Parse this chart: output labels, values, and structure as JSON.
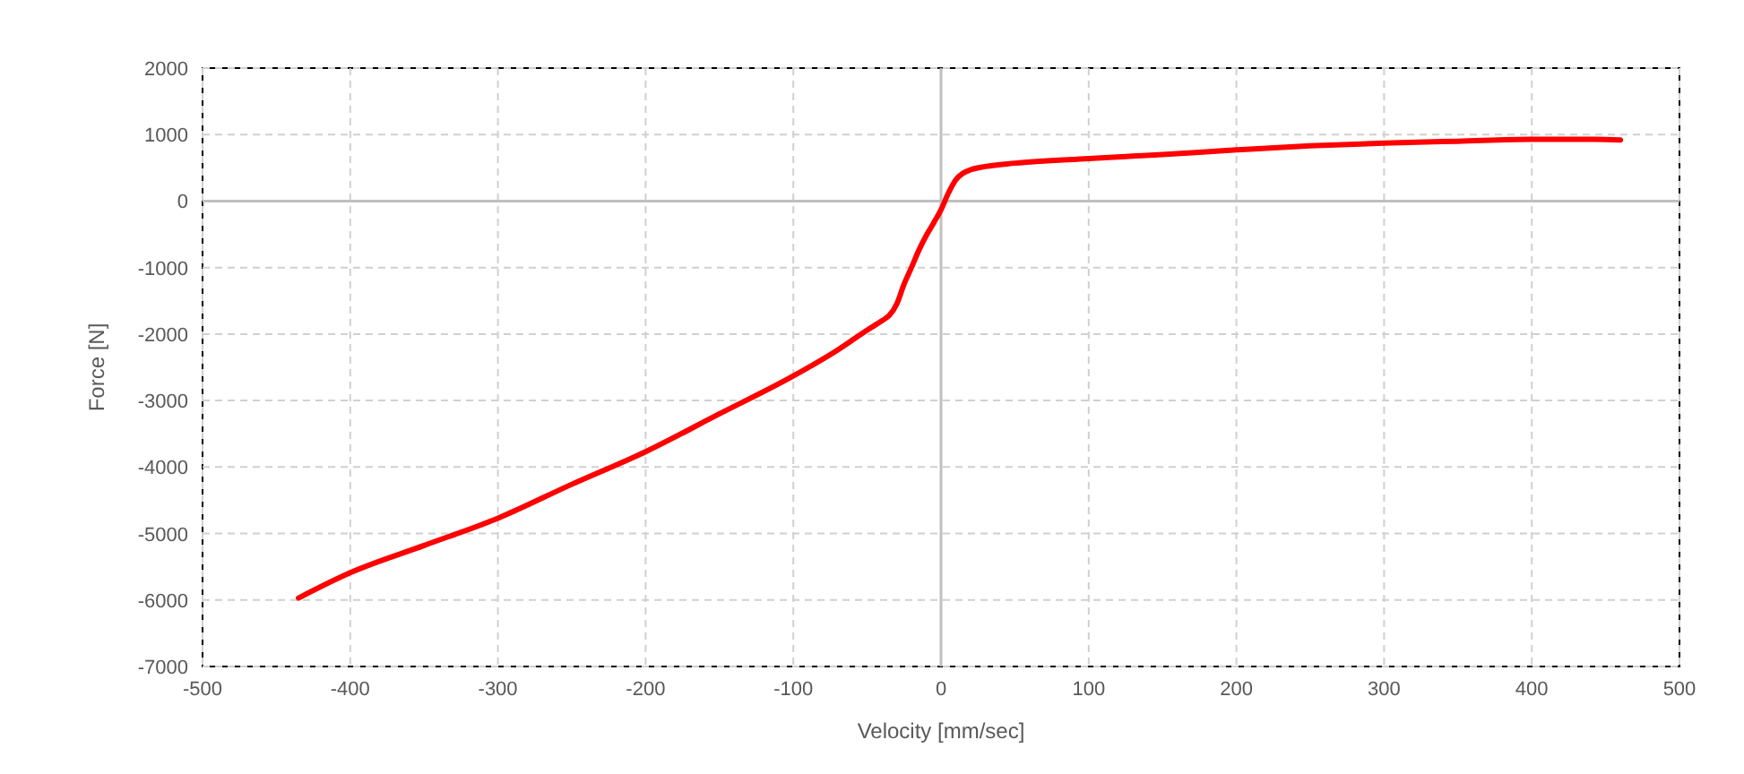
{
  "chart_data": {
    "type": "line",
    "xlabel": "Velocity [mm/sec]",
    "ylabel": "Force [N]",
    "xlim": [
      -500,
      500
    ],
    "xticks": [
      -500,
      -400,
      -300,
      -200,
      -100,
      0,
      100,
      200,
      300,
      400,
      500
    ],
    "ylim": [
      -7000,
      2000
    ],
    "yticks": [
      -7000,
      -6000,
      -5000,
      -4000,
      -3000,
      -2000,
      -1000,
      0,
      1000,
      2000
    ],
    "grid": true,
    "line_style": "solid",
    "marker": "none",
    "series": [
      {
        "color": "#ff0000",
        "x": [
          -435,
          -400,
          -350,
          -300,
          -250,
          -200,
          -150,
          -100,
          -70,
          -50,
          -40,
          -35,
          -30,
          -25,
          -20,
          -15,
          -10,
          -5,
          0,
          5,
          10,
          15,
          20,
          30,
          50,
          100,
          150,
          200,
          250,
          300,
          350,
          400,
          430,
          460
        ],
        "values": [
          -5970,
          -5590,
          -5180,
          -4770,
          -4260,
          -3770,
          -3200,
          -2630,
          -2240,
          -1940,
          -1800,
          -1720,
          -1550,
          -1250,
          -1000,
          -740,
          -520,
          -330,
          -130,
          120,
          320,
          420,
          470,
          520,
          570,
          640,
          700,
          770,
          830,
          870,
          900,
          930,
          930,
          920
        ]
      }
    ]
  }
}
